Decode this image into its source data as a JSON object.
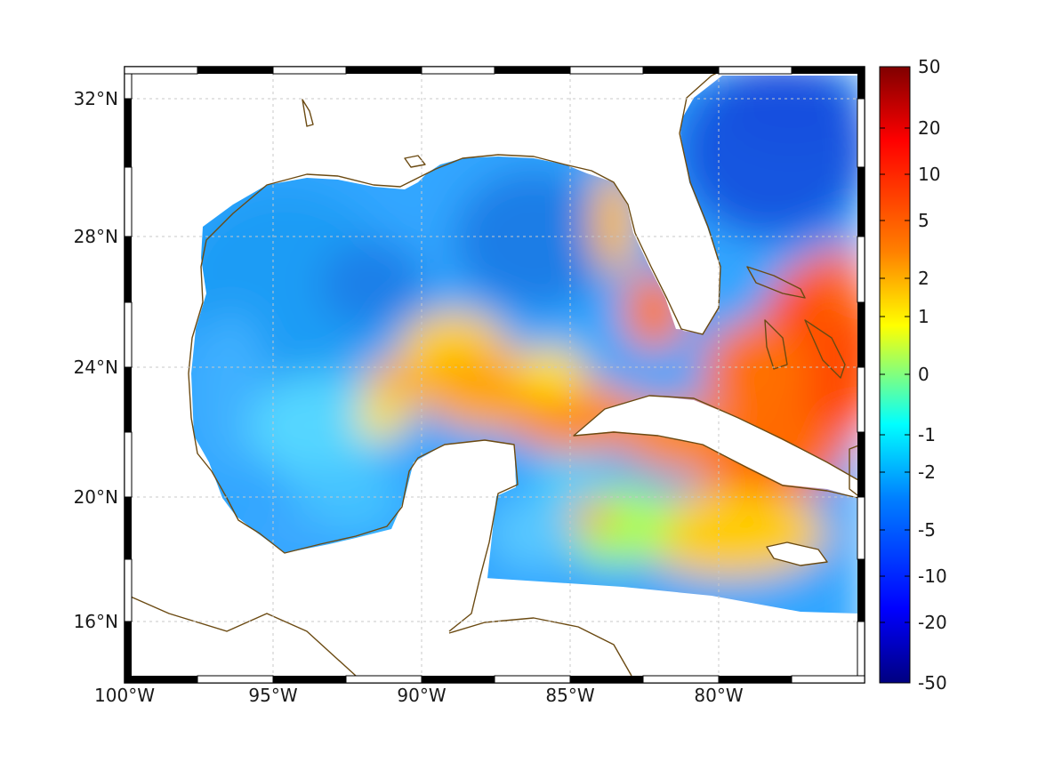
{
  "map": {
    "region": "Gulf of Mexico and Caribbean",
    "lon_range": [
      -100,
      -75
    ],
    "lat_range": [
      14.3,
      33
    ],
    "lon_ticks": [
      {
        "value": -100,
        "label": "100°W"
      },
      {
        "value": -95,
        "label": "95°W"
      },
      {
        "value": -90,
        "label": "90°W"
      },
      {
        "value": -85,
        "label": "85°W"
      },
      {
        "value": -80,
        "label": "80°W"
      }
    ],
    "lat_ticks": [
      {
        "value": 32,
        "label": "32°N"
      },
      {
        "value": 28,
        "label": "28°N"
      },
      {
        "value": 24,
        "label": "24°N"
      },
      {
        "value": 20,
        "label": "20°N"
      },
      {
        "value": 16,
        "label": "16°N"
      }
    ],
    "grid": true,
    "coastline_color": "#6b4a12"
  },
  "colorbar": {
    "colormap": "jet",
    "placement": "right",
    "scale": "nonlinear (symmetric log)",
    "tick_labels": [
      "50",
      "20",
      "10",
      "5",
      "2",
      "1",
      "0",
      "-1",
      "-2",
      "-5",
      "-10",
      "-20",
      "-50"
    ]
  },
  "field": {
    "features": [
      {
        "name": "northern gulf",
        "approx_value": -3
      },
      {
        "name": "central loop current band",
        "approx_value": 4
      },
      {
        "name": "bahamas and cuba east",
        "approx_value": 12
      },
      {
        "name": "atlantic off florida",
        "approx_value": -8
      },
      {
        "name": "west florida shelf",
        "approx_value": 6
      },
      {
        "name": "western gulf",
        "approx_value": -2
      },
      {
        "name": "caribbean south",
        "approx_value": 2
      }
    ]
  }
}
